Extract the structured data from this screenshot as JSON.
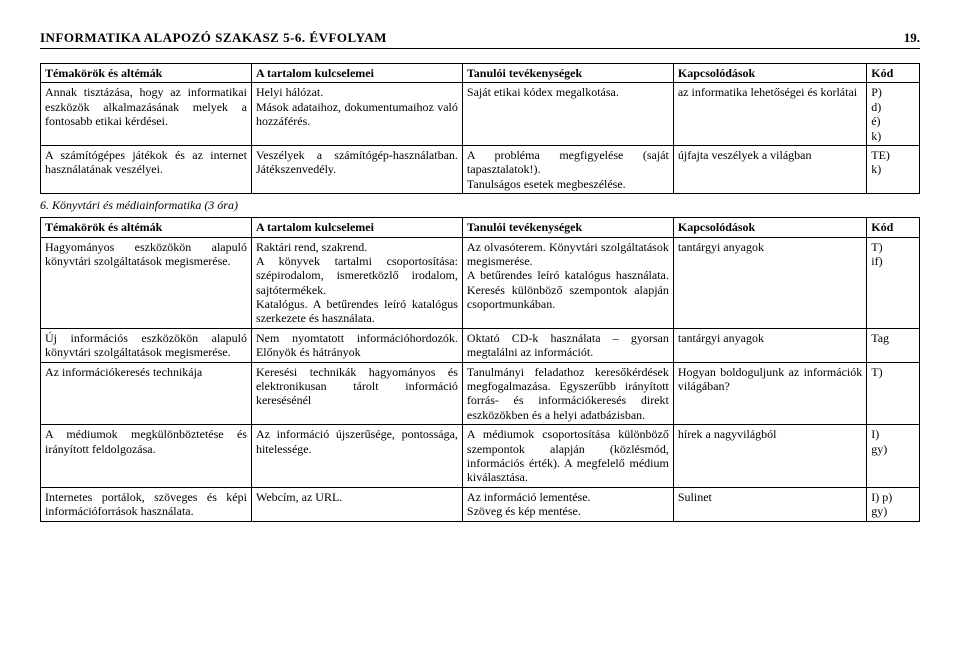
{
  "header": {
    "title": "INFORMATIKA ALAPOZÓ SZAKASZ 5-6. ÉVFOLYAM",
    "page": "19."
  },
  "table1": {
    "headers": [
      "Témakörök és altémák",
      "A tartalom kulcselemei",
      "Tanulói tevékenységek",
      "Kapcsolódások",
      "Kód"
    ],
    "rows": [
      {
        "c0": "Annak tisztázása, hogy az informatikai eszközök alkalmazásának melyek a fontosabb etikai kérdései.",
        "c1": "Helyi hálózat.\nMások adataihoz, dokumentumaihoz való hozzáférés.",
        "c2": "Saját etikai kódex megalkotása.",
        "c3": "az informatika lehetőségei és korlátai",
        "c4": "P)\nd)\né)\nk)"
      },
      {
        "c0": "A számítógépes játékok és az internet használatának veszélyei.",
        "c1": "Veszélyek a számítógép-használatban. Játékszenvedély.",
        "c2": "A probléma megfigyelése (saját tapasztalatok!).\nTanulságos esetek megbeszélése.",
        "c3": "újfajta veszélyek a világban",
        "c4": "TE)\nk)"
      }
    ]
  },
  "sectionTitle": "6. Könyvtári és médiainformatika (3 óra)",
  "table2": {
    "headers": [
      "Témakörök és altémák",
      "A tartalom kulcselemei",
      "Tanulói tevékenységek",
      "Kapcsolódások",
      "Kód"
    ],
    "rows": [
      {
        "c0": "Hagyományos eszközökön alapuló könyvtári szolgáltatások megismerése.",
        "c1": "Raktári rend, szakrend.\nA könyvek tartalmi csoportosítása: szépirodalom, ismeretközlő irodalom, sajtótermékek.\nKatalógus. A betűrendes leíró katalógus szerkezete és használata.",
        "c2": "Az olvasóterem. Könyvtári szolgáltatások megismerése.\nA betűrendes leíró katalógus használata. Keresés különböző szempontok alapján csoportmunkában.",
        "c3": "tantárgyi anyagok",
        "c4": "T)\nif)"
      },
      {
        "c0": "Új információs eszközökön alapuló könyvtári szolgáltatások megismerése.",
        "c1": "Nem nyomtatott információhordozók. Előnyök és hátrányok",
        "c2": "Oktató CD-k használata – gyorsan megtalálni az információt.",
        "c3": "tantárgyi anyagok",
        "c4": "Tag"
      },
      {
        "c0": "Az információkeresés technikája",
        "c1": "Keresési technikák hagyományos és elektronikusan tárolt információ keresésénél",
        "c2": "Tanulmányi feladathoz keresőkérdések megfogalmazása. Egyszerűbb irányított forrás- és információkeresés direkt eszközökben és a helyi adatbázisban.",
        "c3": "Hogyan boldoguljunk az információk világában?",
        "c4": "T)"
      },
      {
        "c0": "A médiumok megkülönböztetése és irányított feldolgozása.",
        "c1": "Az információ újszerűsége, pontossága, hitelessége.",
        "c2": "A médiumok csoportosítása különböző szempontok alapján (közlésmód, információs érték). A megfelelő médium kiválasztása.",
        "c3": "hírek a nagyvilágból",
        "c4": "I)\ngy)"
      },
      {
        "c0": "Internetes portálok, szöveges és képi információforrások használata.",
        "c1": "Webcím, az URL.",
        "c2": "Az információ lementése.\nSzöveg és kép mentése.",
        "c3": "Sulinet",
        "c4": "I) p)\ngy)"
      }
    ]
  }
}
